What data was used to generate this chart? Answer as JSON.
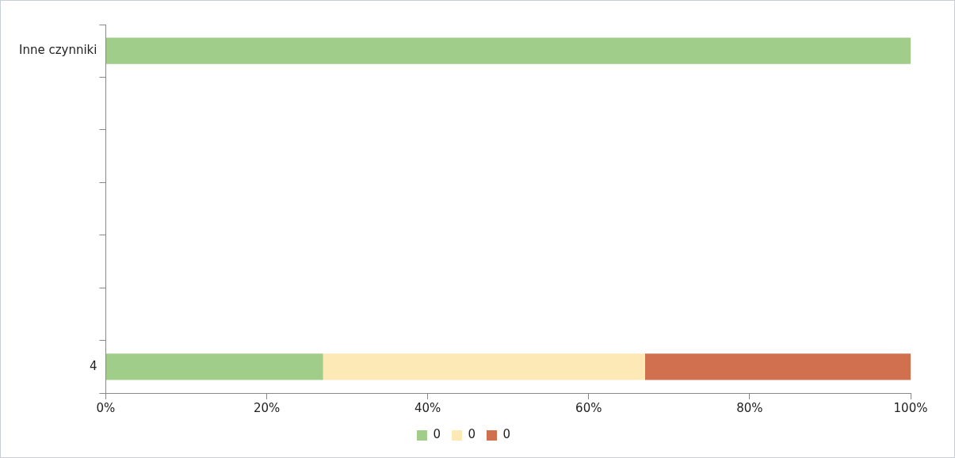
{
  "chart_data": {
    "type": "bar",
    "orientation": "horizontal",
    "stacked": true,
    "categories": [
      "Inne czynniki",
      null,
      null,
      null,
      null,
      null,
      "4"
    ],
    "series": [
      {
        "name": "0",
        "color": "#a1cd8a",
        "values": [
          100,
          null,
          null,
          null,
          null,
          null,
          27
        ]
      },
      {
        "name": "0",
        "color": "#fde9b5",
        "values": [
          0,
          null,
          null,
          null,
          null,
          null,
          40
        ]
      },
      {
        "name": "0",
        "color": "#d0704f",
        "values": [
          0,
          null,
          null,
          null,
          null,
          null,
          33
        ]
      }
    ],
    "xlim": [
      0,
      100
    ],
    "xticks": [
      {
        "value": 0,
        "label": "0%"
      },
      {
        "value": 20,
        "label": "20%"
      },
      {
        "value": 40,
        "label": "40%"
      },
      {
        "value": 60,
        "label": "60%"
      },
      {
        "value": 80,
        "label": "80%"
      },
      {
        "value": 100,
        "label": "100%"
      }
    ],
    "grid": false,
    "legend": "bottom"
  }
}
